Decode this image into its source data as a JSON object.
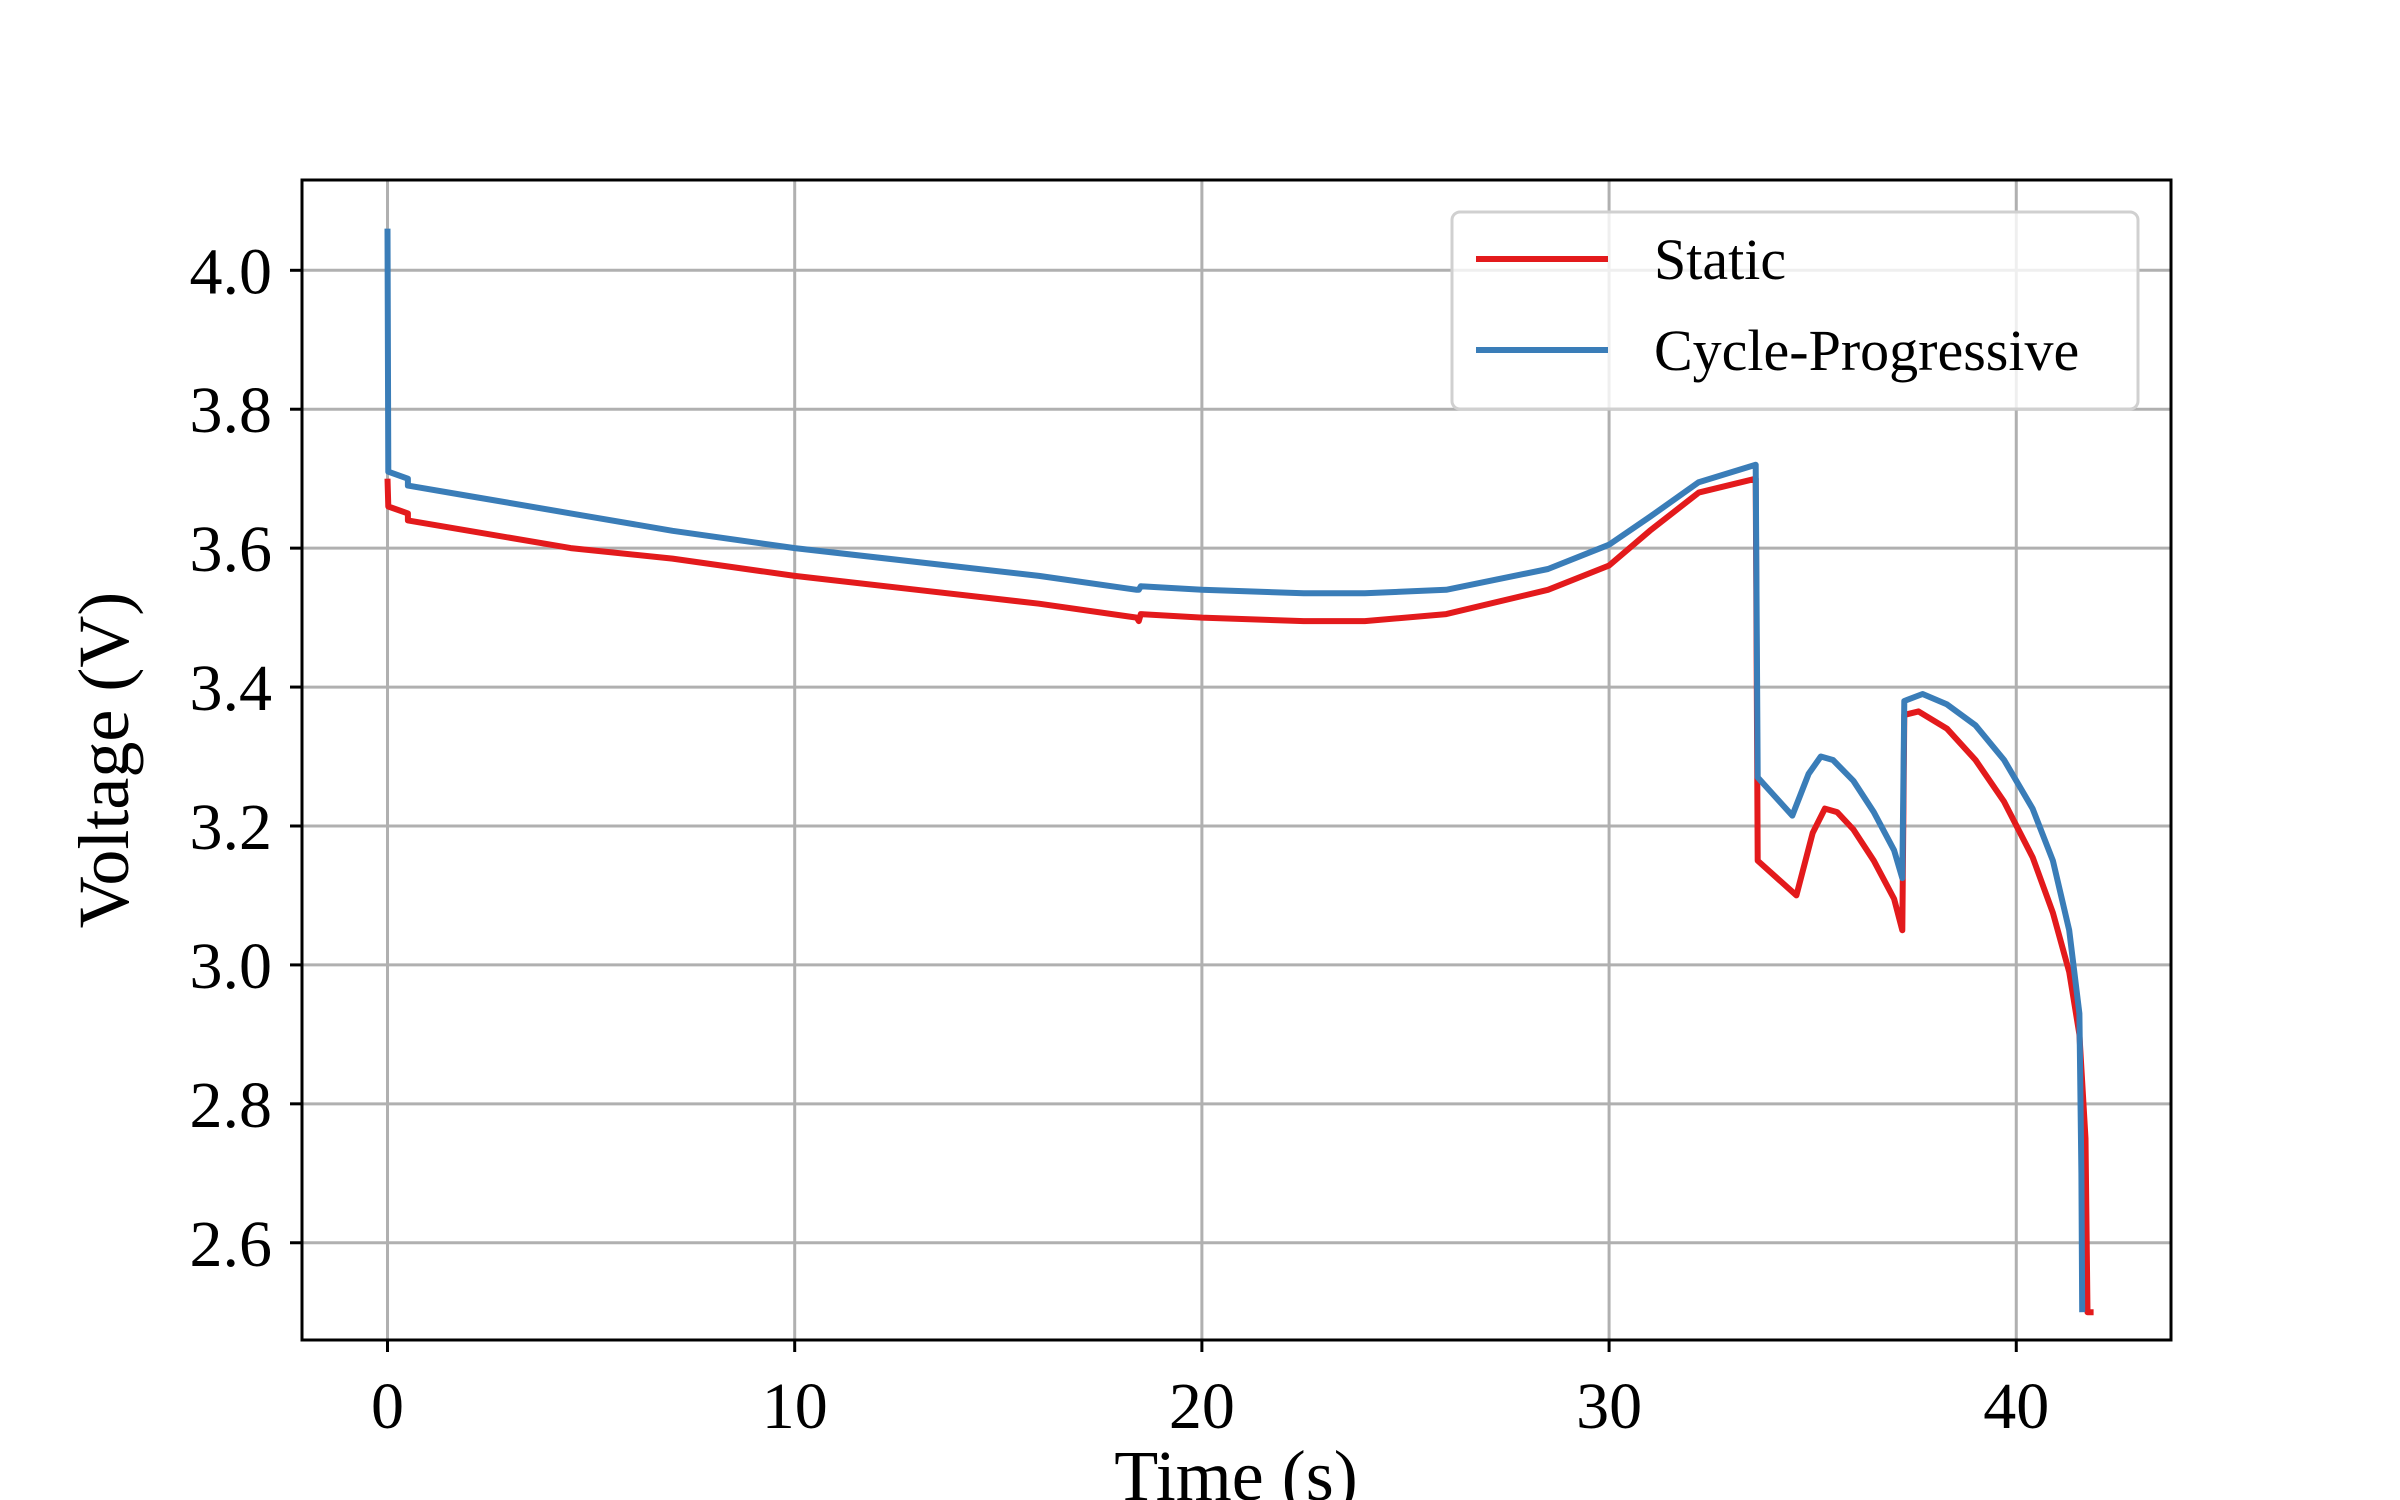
{
  "chart_data": {
    "type": "line",
    "title": "",
    "xlabel": "Time (s)",
    "ylabel": "Voltage (V)",
    "xlim": [
      -2.1,
      43.8
    ],
    "ylim": [
      2.46,
      4.13
    ],
    "xticks": [
      0,
      10,
      20,
      30,
      40
    ],
    "yticks": [
      2.6,
      2.8,
      3.0,
      3.2,
      3.4,
      3.6,
      3.8,
      4.0
    ],
    "ytick_labels": [
      "2.6",
      "2.8",
      "3.0",
      "3.2",
      "3.4",
      "3.6",
      "3.8",
      "4.0"
    ],
    "xtick_labels": [
      "0",
      "10",
      "20",
      "30",
      "40"
    ],
    "grid": true,
    "legend_position": "top-right",
    "series": [
      {
        "name": "Static",
        "color": "#e31a1c",
        "points": [
          [
            0,
            3.7
          ],
          [
            0.02,
            3.66
          ],
          [
            0.5,
            3.65
          ],
          [
            0.5,
            3.64
          ],
          [
            2,
            3.625
          ],
          [
            4.5,
            3.6
          ],
          [
            7,
            3.585
          ],
          [
            10,
            3.56
          ],
          [
            13,
            3.54
          ],
          [
            16,
            3.52
          ],
          [
            18.4,
            3.5
          ],
          [
            18.45,
            3.495
          ],
          [
            18.5,
            3.505
          ],
          [
            20,
            3.5
          ],
          [
            22.5,
            3.495
          ],
          [
            24,
            3.495
          ],
          [
            26,
            3.505
          ],
          [
            28.5,
            3.54
          ],
          [
            30,
            3.575
          ],
          [
            31,
            3.625
          ],
          [
            32.2,
            3.68
          ],
          [
            33.6,
            3.7
          ],
          [
            33.65,
            3.15
          ],
          [
            34.6,
            3.1
          ],
          [
            35,
            3.19
          ],
          [
            35.3,
            3.225
          ],
          [
            35.6,
            3.22
          ],
          [
            36,
            3.195
          ],
          [
            36.5,
            3.15
          ],
          [
            37.0,
            3.095
          ],
          [
            37.2,
            3.05
          ],
          [
            37.25,
            3.36
          ],
          [
            37.6,
            3.365
          ],
          [
            38.3,
            3.34
          ],
          [
            39,
            3.295
          ],
          [
            39.7,
            3.235
          ],
          [
            40.4,
            3.155
          ],
          [
            40.9,
            3.075
          ],
          [
            41.3,
            2.99
          ],
          [
            41.55,
            2.9
          ],
          [
            41.7,
            2.75
          ],
          [
            41.75,
            2.5
          ],
          [
            41.9,
            2.5
          ]
        ]
      },
      {
        "name": "Cycle-Progressive",
        "color": "#3a7db8",
        "points": [
          [
            0,
            4.06
          ],
          [
            0.02,
            3.71
          ],
          [
            0.5,
            3.7
          ],
          [
            0.5,
            3.69
          ],
          [
            2,
            3.675
          ],
          [
            4.5,
            3.65
          ],
          [
            7,
            3.625
          ],
          [
            10,
            3.6
          ],
          [
            13,
            3.58
          ],
          [
            16,
            3.56
          ],
          [
            18.4,
            3.54
          ],
          [
            18.45,
            3.54
          ],
          [
            18.5,
            3.545
          ],
          [
            20,
            3.54
          ],
          [
            22.5,
            3.535
          ],
          [
            24,
            3.535
          ],
          [
            26,
            3.54
          ],
          [
            28.5,
            3.57
          ],
          [
            30,
            3.605
          ],
          [
            31,
            3.645
          ],
          [
            32.2,
            3.695
          ],
          [
            33.6,
            3.72
          ],
          [
            33.65,
            3.27
          ],
          [
            34.5,
            3.215
          ],
          [
            34.9,
            3.275
          ],
          [
            35.2,
            3.3
          ],
          [
            35.5,
            3.295
          ],
          [
            36,
            3.265
          ],
          [
            36.5,
            3.22
          ],
          [
            37.0,
            3.165
          ],
          [
            37.2,
            3.125
          ],
          [
            37.25,
            3.38
          ],
          [
            37.7,
            3.39
          ],
          [
            38.3,
            3.375
          ],
          [
            39,
            3.345
          ],
          [
            39.7,
            3.295
          ],
          [
            40.4,
            3.225
          ],
          [
            40.9,
            3.15
          ],
          [
            41.3,
            3.05
          ],
          [
            41.55,
            2.93
          ],
          [
            41.6,
            2.7
          ],
          [
            41.62,
            2.5
          ]
        ]
      }
    ]
  }
}
